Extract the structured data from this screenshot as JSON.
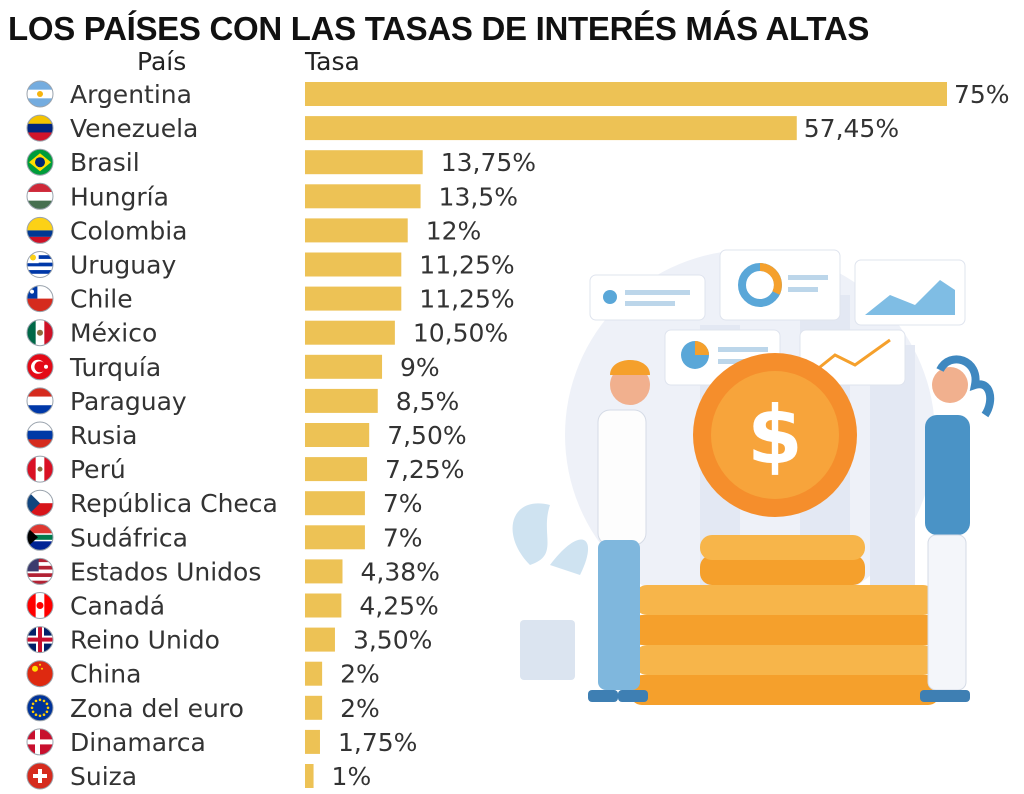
{
  "title": "LOS PAÍSES CON LAS TASAS DE INTERÉS MÁS ALTAS",
  "headers": {
    "country": "País",
    "rate": "Tasa"
  },
  "colors": {
    "bar": "#edc255",
    "accent_coin": "#f5a02c"
  },
  "chart_data": {
    "type": "bar",
    "orientation": "horizontal",
    "title": "LOS PAÍSES CON LAS TASAS DE INTERÉS MÁS ALTAS",
    "xlabel": "Tasa",
    "ylabel": "País",
    "xlim": [
      0,
      75
    ],
    "grid": false,
    "categories": [
      "Argentina",
      "Venezuela",
      "Brasil",
      "Hungría",
      "Colombia",
      "Uruguay",
      "Chile",
      "México",
      "Turquía",
      "Paraguay",
      "Rusia",
      "Perú",
      "República Checa",
      "Sudáfrica",
      "Estados Unidos",
      "Canadá",
      "Reino Unido",
      "China",
      "Zona del euro",
      "Dinamarca",
      "Suiza"
    ],
    "values": [
      75,
      57.45,
      13.75,
      13.5,
      12,
      11.25,
      11.25,
      10.5,
      9,
      8.5,
      7.5,
      7.25,
      7,
      7,
      4.38,
      4.25,
      3.5,
      2,
      2,
      1.75,
      1
    ],
    "labels": [
      "75%",
      "57,45%",
      "13,75%",
      "13,5%",
      "12%",
      "11,25%",
      "11,25%",
      "10,50%",
      "9%",
      "8,5%",
      "7,50%",
      "7,25%",
      "7%",
      "7%",
      "4,38%",
      "4,25%",
      "3,50%",
      "2%",
      "2%",
      "1,75%",
      "1%"
    ],
    "flag_icons": [
      "flag-argentina-icon",
      "flag-venezuela-icon",
      "flag-brazil-icon",
      "flag-hungary-icon",
      "flag-colombia-icon",
      "flag-uruguay-icon",
      "flag-chile-icon",
      "flag-mexico-icon",
      "flag-turkey-icon",
      "flag-paraguay-icon",
      "flag-russia-icon",
      "flag-peru-icon",
      "flag-czech-icon",
      "flag-south-africa-icon",
      "flag-usa-icon",
      "flag-canada-icon",
      "flag-uk-icon",
      "flag-china-icon",
      "flag-eu-icon",
      "flag-denmark-icon",
      "flag-switzerland-icon"
    ]
  }
}
